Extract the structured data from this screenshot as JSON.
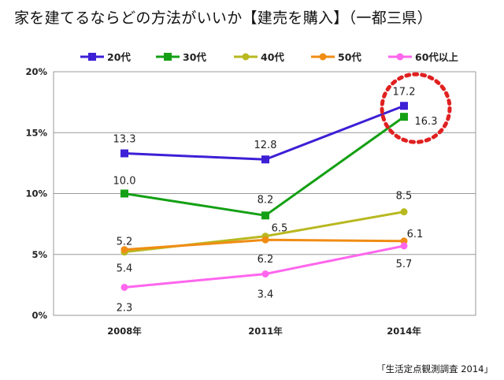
{
  "page": {
    "title": "家を建てるならどの方法がいいか【建売を購入】（一都三県）",
    "source": "「生活定点観測調査 2014」"
  },
  "chart_data": {
    "type": "line",
    "title": "家を建てるならどの方法がいいか【建売を購入】（一都三県）",
    "categories": [
      "2008年",
      "2011年",
      "2014年"
    ],
    "ylim": [
      0,
      20
    ],
    "y_ticks": [
      "0%",
      "5%",
      "10%",
      "15%",
      "20%"
    ],
    "y_tick_values": [
      0,
      5,
      10,
      15,
      20
    ],
    "grid": true,
    "legend_position": "top",
    "series": [
      {
        "name": "20代",
        "values": [
          13.3,
          12.8,
          17.2
        ],
        "labels": [
          "13.3",
          "12.8",
          "17.2"
        ],
        "color": "#3d1fd6",
        "marker": "square"
      },
      {
        "name": "30代",
        "values": [
          10.0,
          8.2,
          16.3
        ],
        "labels": [
          "10.0",
          "8.2",
          "16.3"
        ],
        "color": "#14a014",
        "marker": "square"
      },
      {
        "name": "40代",
        "values": [
          5.2,
          6.5,
          8.5
        ],
        "labels": [
          "5.2",
          "6.5",
          "8.5"
        ],
        "color": "#b8b820",
        "marker": "circle"
      },
      {
        "name": "50代",
        "values": [
          5.4,
          6.2,
          6.1
        ],
        "labels": [
          "5.4",
          "6.2",
          "6.1"
        ],
        "color": "#f08c14",
        "marker": "circle"
      },
      {
        "name": "60代以上",
        "values": [
          2.3,
          3.4,
          5.7
        ],
        "labels": [
          "2.3",
          "3.4",
          "5.7"
        ],
        "color": "#ff66ee",
        "marker": "circle"
      }
    ],
    "annotation": {
      "type": "dotted-circle",
      "color": "#e02020",
      "highlights": "2014年 20代 / 30代"
    }
  }
}
